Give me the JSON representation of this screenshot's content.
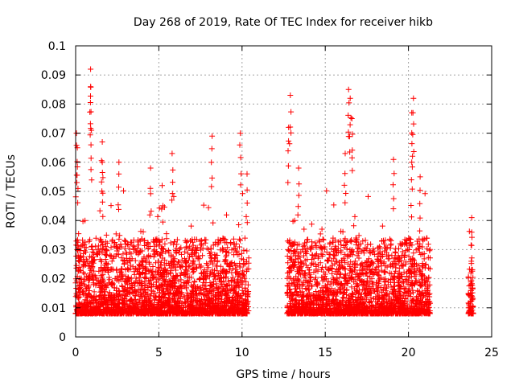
{
  "chart_data": {
    "type": "scatter",
    "title": "Day 268 of 2019, Rate Of TEC Index for receiver hikb",
    "xlabel": "GPS time / hours",
    "ylabel": "ROTI / TECUs",
    "xlim": [
      0,
      25
    ],
    "ylim": [
      0,
      0.1
    ],
    "x_ticks": [
      "0",
      "5",
      "10",
      "15",
      "20",
      "25"
    ],
    "y_ticks": [
      "0",
      "0.01",
      "0.02",
      "0.03",
      "0.04",
      "0.05",
      "0.06",
      "0.07",
      "0.08",
      "0.09",
      "0.1"
    ],
    "grid": true,
    "marker": "+",
    "color": "#ff0000",
    "series": [
      {
        "name": "ROTI",
        "segments": [
          {
            "x_start": 0.0,
            "x_end": 10.4,
            "typical_max": 0.03,
            "typical_min": 0.004
          },
          {
            "x_start": 12.7,
            "x_end": 21.3,
            "typical_max": 0.03,
            "typical_min": 0.004
          },
          {
            "x_start": 23.6,
            "x_end": 23.9,
            "typical_max": 0.02,
            "typical_min": 0.004
          }
        ],
        "peaks": [
          {
            "x": 0.05,
            "y": 0.07
          },
          {
            "x": 0.1,
            "y": 0.065
          },
          {
            "x": 0.9,
            "y": 0.092
          },
          {
            "x": 0.9,
            "y": 0.086
          },
          {
            "x": 0.95,
            "y": 0.071
          },
          {
            "x": 1.6,
            "y": 0.067
          },
          {
            "x": 1.6,
            "y": 0.06
          },
          {
            "x": 2.6,
            "y": 0.06
          },
          {
            "x": 4.5,
            "y": 0.058
          },
          {
            "x": 5.2,
            "y": 0.052
          },
          {
            "x": 5.8,
            "y": 0.063
          },
          {
            "x": 8.2,
            "y": 0.069
          },
          {
            "x": 9.9,
            "y": 0.07
          },
          {
            "x": 10.3,
            "y": 0.056
          },
          {
            "x": 12.8,
            "y": 0.072
          },
          {
            "x": 12.9,
            "y": 0.083
          },
          {
            "x": 13.4,
            "y": 0.058
          },
          {
            "x": 16.2,
            "y": 0.063
          },
          {
            "x": 16.4,
            "y": 0.085
          },
          {
            "x": 16.5,
            "y": 0.082
          },
          {
            "x": 16.6,
            "y": 0.075
          },
          {
            "x": 19.1,
            "y": 0.061
          },
          {
            "x": 20.2,
            "y": 0.077
          },
          {
            "x": 20.3,
            "y": 0.082
          },
          {
            "x": 20.2,
            "y": 0.06
          },
          {
            "x": 20.7,
            "y": 0.055
          },
          {
            "x": 23.8,
            "y": 0.041
          },
          {
            "x": 23.8,
            "y": 0.036
          }
        ]
      }
    ]
  }
}
